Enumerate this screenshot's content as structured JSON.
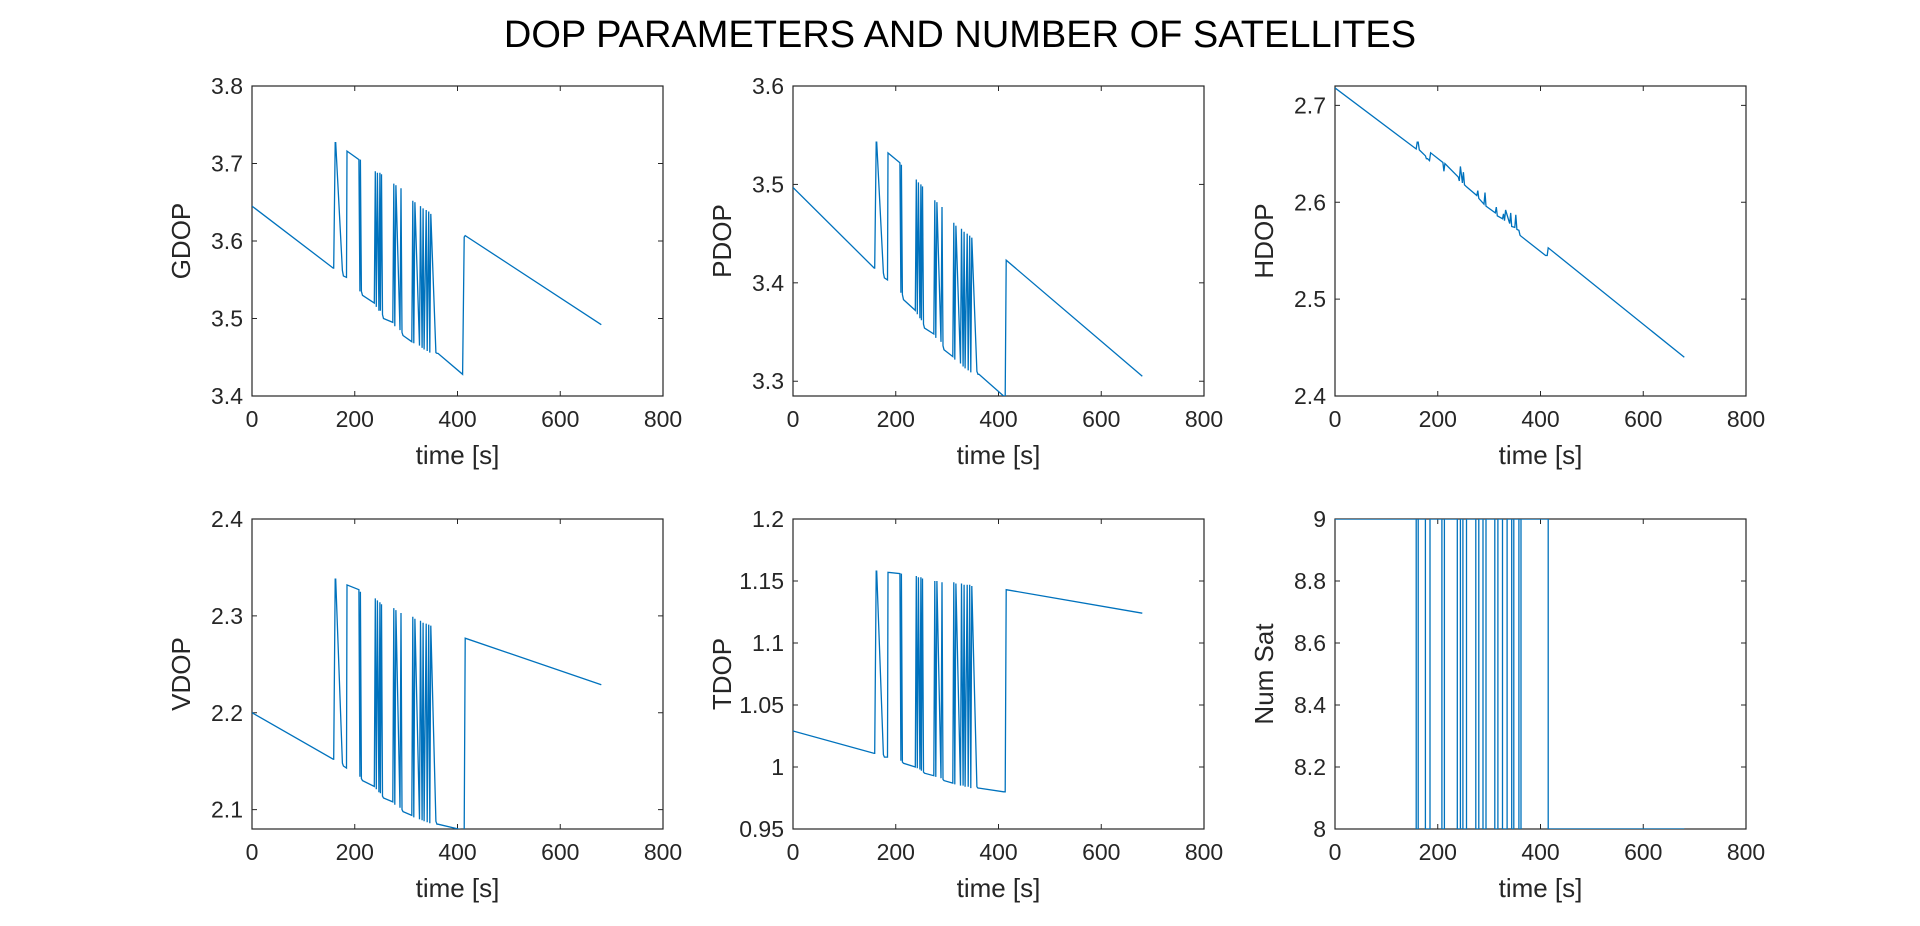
{
  "figure": {
    "title": "DOP PARAMETERS AND NUMBER OF SATELLITES",
    "line_color": "#0072BD"
  },
  "chart_data": [
    {
      "type": "line",
      "ylabel": "GDOP",
      "xlabel": "time [s]",
      "xlim": [
        0,
        800
      ],
      "ylim": [
        3.4,
        3.8
      ],
      "xticks": [
        0,
        200,
        400,
        600,
        800
      ],
      "yticks": [
        3.4,
        3.5,
        3.6,
        3.7,
        3.8
      ],
      "ytick_labels": [
        "3.4",
        "3.5",
        "3.6",
        "3.7",
        "3.8"
      ],
      "series": [
        {
          "x": [
            0,
            158,
            159,
            162,
            163,
            176,
            178,
            184,
            185,
            208,
            210,
            211,
            213,
            215,
            238,
            240,
            242,
            244,
            247,
            249,
            250,
            252,
            254,
            256,
            274,
            276,
            278,
            280,
            288,
            290,
            292,
            294,
            311,
            313,
            315,
            317,
            326,
            328,
            331,
            333,
            335,
            339,
            341,
            344,
            346,
            348,
            358,
            360,
            362,
            410,
            413,
            415,
            680
          ],
          "y": [
            3.645,
            3.565,
            3.565,
            3.727,
            3.727,
            3.562,
            3.555,
            3.553,
            3.716,
            3.705,
            3.535,
            3.705,
            3.535,
            3.53,
            3.52,
            3.69,
            3.515,
            3.688,
            3.51,
            3.688,
            3.51,
            3.686,
            3.505,
            3.5,
            3.495,
            3.674,
            3.49,
            3.672,
            3.485,
            3.668,
            3.482,
            3.478,
            3.47,
            3.652,
            3.468,
            3.65,
            3.465,
            3.645,
            3.462,
            3.642,
            3.46,
            3.64,
            3.458,
            3.638,
            3.456,
            3.635,
            3.456,
            3.455,
            3.455,
            3.428,
            3.605,
            3.607,
            3.492
          ]
        }
      ]
    },
    {
      "type": "line",
      "ylabel": "PDOP",
      "xlabel": "time [s]",
      "xlim": [
        0,
        800
      ],
      "ylim": [
        3.285,
        3.6
      ],
      "xticks": [
        0,
        200,
        400,
        600,
        800
      ],
      "yticks": [
        3.3,
        3.4,
        3.5,
        3.6
      ],
      "ytick_labels": [
        "3.3",
        "3.4",
        "3.5",
        "3.6"
      ],
      "series": [
        {
          "x": [
            0,
            158,
            159,
            162,
            163,
            176,
            178,
            184,
            185,
            208,
            210,
            211,
            213,
            215,
            238,
            240,
            242,
            244,
            247,
            249,
            250,
            252,
            254,
            256,
            274,
            276,
            278,
            280,
            288,
            290,
            292,
            294,
            311,
            313,
            315,
            317,
            326,
            328,
            331,
            333,
            335,
            339,
            341,
            344,
            346,
            348,
            358,
            360,
            362,
            410,
            413,
            415,
            680
          ],
          "y": [
            3.497,
            3.415,
            3.415,
            3.543,
            3.543,
            3.41,
            3.405,
            3.403,
            3.532,
            3.522,
            3.39,
            3.52,
            3.388,
            3.383,
            3.372,
            3.505,
            3.368,
            3.502,
            3.364,
            3.5,
            3.362,
            3.498,
            3.358,
            3.354,
            3.348,
            3.484,
            3.344,
            3.482,
            3.34,
            3.477,
            3.336,
            3.332,
            3.325,
            3.461,
            3.322,
            3.458,
            3.318,
            3.455,
            3.315,
            3.452,
            3.313,
            3.45,
            3.311,
            3.448,
            3.309,
            3.446,
            3.31,
            3.307,
            3.307,
            3.285,
            3.285,
            3.423,
            3.305
          ]
        }
      ]
    },
    {
      "type": "line",
      "ylabel": "HDOP",
      "xlabel": "time [s]",
      "xlim": [
        0,
        800
      ],
      "ylim": [
        2.4,
        2.72
      ],
      "xticks": [
        0,
        200,
        400,
        600,
        800
      ],
      "yticks": [
        2.4,
        2.5,
        2.6,
        2.7
      ],
      "ytick_labels": [
        "2.4",
        "2.5",
        "2.6",
        "2.7"
      ],
      "series": [
        {
          "x": [
            0,
            158,
            160,
            162,
            164,
            176,
            178,
            180,
            184,
            186,
            210,
            212,
            214,
            240,
            242,
            244,
            248,
            250,
            252,
            256,
            276,
            278,
            280,
            290,
            292,
            294,
            312,
            314,
            316,
            326,
            328,
            330,
            332,
            340,
            342,
            344,
            350,
            352,
            354,
            358,
            360,
            362,
            410,
            413,
            415,
            680
          ],
          "y": [
            2.718,
            2.655,
            2.662,
            2.662,
            2.654,
            2.648,
            2.645,
            2.645,
            2.643,
            2.651,
            2.641,
            2.632,
            2.64,
            2.626,
            2.622,
            2.637,
            2.62,
            2.631,
            2.618,
            2.616,
            2.607,
            2.612,
            2.604,
            2.598,
            2.61,
            2.596,
            2.589,
            2.595,
            2.586,
            2.583,
            2.588,
            2.581,
            2.592,
            2.578,
            2.589,
            2.575,
            2.574,
            2.587,
            2.572,
            2.571,
            2.566,
            2.565,
            2.545,
            2.545,
            2.553,
            2.44
          ]
        }
      ]
    },
    {
      "type": "line",
      "ylabel": "VDOP",
      "xlabel": "time [s]",
      "xlim": [
        0,
        800
      ],
      "ylim": [
        2.08,
        2.4
      ],
      "xticks": [
        0,
        200,
        400,
        600,
        800
      ],
      "yticks": [
        2.1,
        2.2,
        2.3,
        2.4
      ],
      "ytick_labels": [
        "2.1",
        "2.2",
        "2.3",
        "2.4"
      ],
      "series": [
        {
          "x": [
            0,
            158,
            159,
            162,
            163,
            176,
            178,
            184,
            185,
            208,
            210,
            211,
            213,
            215,
            238,
            240,
            242,
            244,
            247,
            249,
            250,
            252,
            254,
            256,
            274,
            276,
            278,
            280,
            288,
            290,
            292,
            294,
            311,
            313,
            315,
            317,
            326,
            328,
            331,
            333,
            335,
            339,
            341,
            344,
            346,
            348,
            358,
            360,
            362,
            410,
            413,
            415,
            680
          ],
          "y": [
            2.2,
            2.152,
            2.152,
            2.338,
            2.338,
            2.148,
            2.145,
            2.143,
            2.332,
            2.327,
            2.134,
            2.325,
            2.132,
            2.13,
            2.124,
            2.318,
            2.121,
            2.316,
            2.118,
            2.314,
            2.117,
            2.312,
            2.114,
            2.112,
            2.108,
            2.308,
            2.105,
            2.306,
            2.102,
            2.303,
            2.1,
            2.098,
            2.094,
            2.299,
            2.092,
            2.297,
            2.09,
            2.295,
            2.089,
            2.293,
            2.088,
            2.292,
            2.087,
            2.291,
            2.086,
            2.29,
            2.088,
            2.085,
            2.085,
            2.079,
            2.079,
            2.277,
            2.229
          ]
        }
      ]
    },
    {
      "type": "line",
      "ylabel": "TDOP",
      "xlabel": "time [s]",
      "xlim": [
        0,
        800
      ],
      "ylim": [
        0.95,
        1.2
      ],
      "xticks": [
        0,
        200,
        400,
        600,
        800
      ],
      "yticks": [
        0.95,
        1.0,
        1.05,
        1.1,
        1.15,
        1.2
      ],
      "ytick_labels": [
        "0.95",
        "1",
        "1.05",
        "1.1",
        "1.15",
        "1.2"
      ],
      "series": [
        {
          "x": [
            0,
            158,
            159,
            162,
            163,
            176,
            178,
            184,
            185,
            208,
            210,
            211,
            213,
            215,
            238,
            240,
            242,
            244,
            247,
            249,
            250,
            252,
            254,
            256,
            274,
            276,
            278,
            280,
            288,
            290,
            292,
            294,
            311,
            313,
            315,
            317,
            326,
            328,
            331,
            333,
            335,
            339,
            341,
            344,
            346,
            348,
            358,
            360,
            362,
            410,
            413,
            415,
            680
          ],
          "y": [
            1.029,
            1.011,
            1.011,
            1.158,
            1.158,
            1.01,
            1.008,
            1.008,
            1.157,
            1.156,
            1.005,
            1.156,
            1.004,
            1.003,
            1.0,
            1.154,
            0.999,
            1.153,
            0.998,
            1.153,
            0.997,
            1.152,
            0.996,
            0.995,
            0.993,
            1.15,
            0.992,
            1.15,
            0.991,
            1.149,
            0.99,
            0.989,
            0.987,
            1.149,
            0.986,
            1.148,
            0.985,
            1.148,
            0.985,
            1.147,
            0.984,
            1.147,
            0.984,
            1.147,
            0.983,
            1.146,
            0.984,
            0.983,
            0.983,
            0.98,
            0.98,
            1.143,
            1.124
          ]
        }
      ]
    },
    {
      "type": "line",
      "ylabel": "Num Sat",
      "xlabel": "time [s]",
      "xlim": [
        0,
        800
      ],
      "ylim": [
        8,
        9
      ],
      "xticks": [
        0,
        200,
        400,
        600,
        800
      ],
      "yticks": [
        8,
        8.2,
        8.4,
        8.6,
        8.8,
        9
      ],
      "ytick_labels": [
        "8",
        "8.2",
        "8.4",
        "8.6",
        "8.8",
        "9"
      ],
      "series": [
        {
          "x": [
            0,
            158,
            158,
            162,
            162,
            176,
            176,
            185,
            185,
            208,
            208,
            213,
            213,
            238,
            238,
            244,
            244,
            249,
            249,
            256,
            256,
            274,
            274,
            280,
            280,
            288,
            288,
            294,
            294,
            311,
            311,
            317,
            317,
            326,
            326,
            335,
            335,
            344,
            344,
            348,
            348,
            358,
            358,
            362,
            362,
            410,
            410,
            415,
            415,
            680
          ],
          "y": [
            9,
            9,
            8,
            8,
            9,
            9,
            8,
            8,
            9,
            9,
            8,
            8,
            9,
            9,
            8,
            8,
            9,
            9,
            8,
            8,
            9,
            9,
            8,
            8,
            9,
            9,
            8,
            8,
            9,
            9,
            8,
            8,
            9,
            9,
            8,
            8,
            9,
            9,
            8,
            8,
            9,
            9,
            8,
            8,
            9,
            9,
            9,
            9,
            8,
            8
          ]
        }
      ]
    }
  ]
}
